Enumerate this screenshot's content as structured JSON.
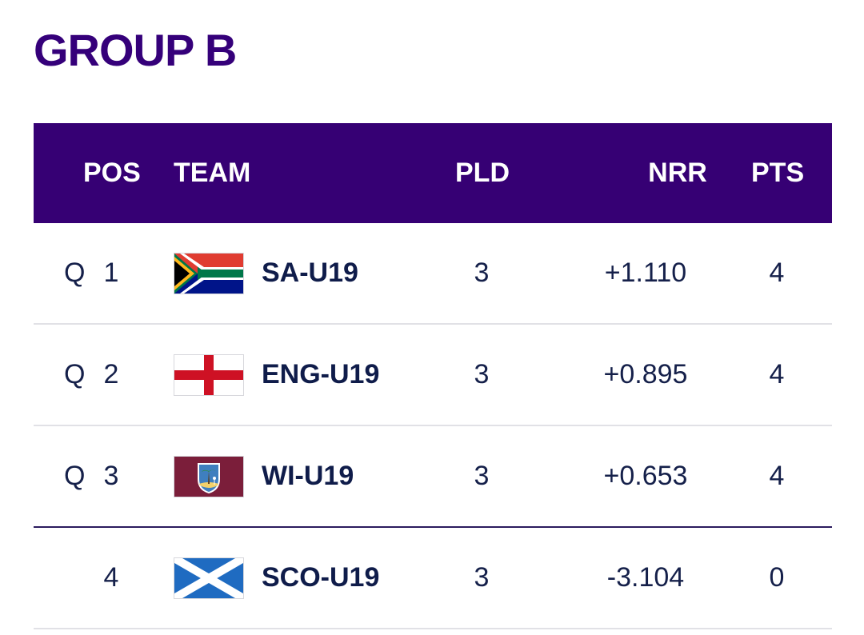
{
  "group": {
    "title": "GROUP B"
  },
  "table": {
    "headers": {
      "pos": "POS",
      "team": "TEAM",
      "pld": "PLD",
      "nrr": "NRR",
      "pts": "PTS"
    },
    "rows": [
      {
        "qualifier": "Q",
        "pos": "1",
        "flag_icon": "south-africa-flag-icon",
        "team": "SA-U19",
        "pld": "3",
        "nrr": "+1.110",
        "pts": "4"
      },
      {
        "qualifier": "Q",
        "pos": "2",
        "flag_icon": "england-flag-icon",
        "team": "ENG-U19",
        "pld": "3",
        "nrr": "+0.895",
        "pts": "4"
      },
      {
        "qualifier": "Q",
        "pos": "3",
        "flag_icon": "west-indies-flag-icon",
        "team": "WI-U19",
        "pld": "3",
        "nrr": "+0.653",
        "pts": "4"
      },
      {
        "qualifier": "",
        "pos": "4",
        "flag_icon": "scotland-flag-icon",
        "team": "SCO-U19",
        "pld": "3",
        "nrr": "-3.104",
        "pts": "0"
      }
    ]
  },
  "colors": {
    "title": "#35007a",
    "header_bg": "#360074",
    "header_text": "#ffffff",
    "row_text": "#15204a",
    "divider": "#e1e1e6",
    "qualification_line": "#2b1b5e"
  }
}
